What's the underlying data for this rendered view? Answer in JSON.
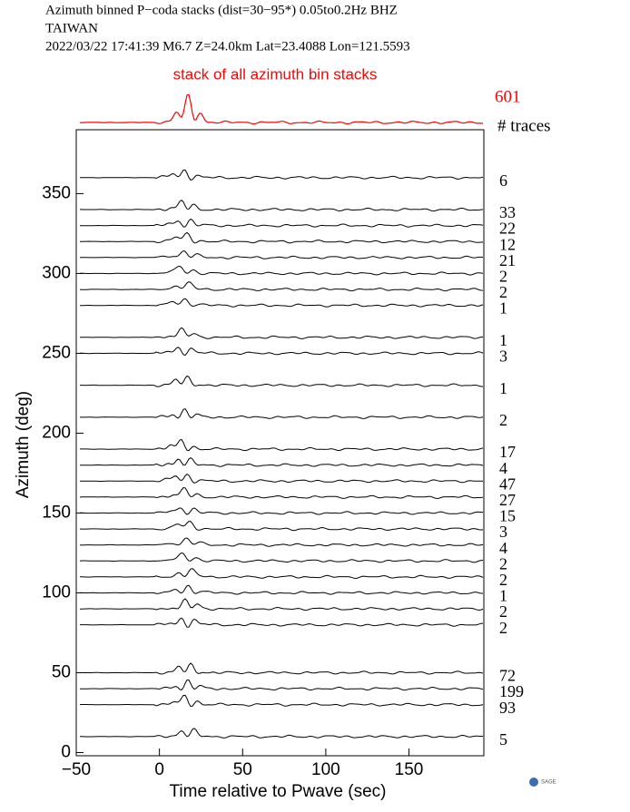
{
  "chart_data": {
    "type": "wiggle",
    "header": [
      "Azimuth binned P−coda stacks (dist=30−95*)  0.05to0.2Hz  BHZ",
      "TAIWAN",
      "2022/03/22  17:41:39  M6.7  Z=24.0km Lat=23.4088 Lon=121.5593"
    ],
    "stack_title": "stack of all azimuth bin stacks",
    "stack_count": 601,
    "stack_color": "#ff0000",
    "count_header": "# traces",
    "x_label": "Time relative to Pwave (sec)",
    "y_label": "Azimuth (deg)",
    "xlim": [
      -50,
      195
    ],
    "ylim": [
      -2,
      390
    ],
    "xticks": [
      {
        "value": -50,
        "label": "−50"
      },
      0,
      50,
      100,
      150
    ],
    "yticks": [
      0,
      50,
      100,
      150,
      200,
      250,
      300,
      350
    ],
    "azimuths": [
      360,
      340,
      330,
      320,
      310,
      300,
      290,
      280,
      260,
      250,
      230,
      210,
      190,
      180,
      170,
      160,
      150,
      140,
      130,
      120,
      110,
      100,
      90,
      80,
      50,
      40,
      30,
      10
    ],
    "counts": [
      6,
      33,
      22,
      12,
      21,
      2,
      2,
      1,
      1,
      3,
      1,
      2,
      17,
      4,
      47,
      27,
      15,
      3,
      4,
      2,
      2,
      1,
      2,
      2,
      72,
      199,
      93,
      5
    ],
    "logo": "SAGE"
  }
}
